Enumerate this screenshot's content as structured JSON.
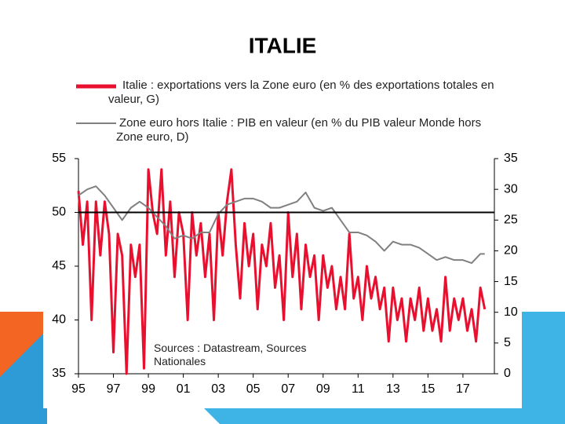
{
  "chart_data": {
    "type": "line",
    "title": "ITALIE",
    "annotation": "Sources : Datastream, Sources Nationales",
    "xlim": [
      1995,
      2018.8
    ],
    "xticks": [
      {
        "value": 1995,
        "label": "95"
      },
      {
        "value": 1997,
        "label": "97"
      },
      {
        "value": 1999,
        "label": "99"
      },
      {
        "value": 2001,
        "label": "01"
      },
      {
        "value": 2003,
        "label": "03"
      },
      {
        "value": 2005,
        "label": "05"
      },
      {
        "value": 2007,
        "label": "07"
      },
      {
        "value": 2009,
        "label": "09"
      },
      {
        "value": 2011,
        "label": "11"
      },
      {
        "value": 2013,
        "label": "13"
      },
      {
        "value": 2015,
        "label": "15"
      },
      {
        "value": 2017,
        "label": "17"
      }
    ],
    "ylim": [
      35,
      55
    ],
    "yticks": [
      35,
      40,
      45,
      50,
      55
    ],
    "y2lim": [
      0,
      35
    ],
    "y2ticks": [
      0,
      5,
      10,
      15,
      20,
      25,
      30,
      35
    ],
    "reference_line": 50,
    "series": [
      {
        "name": "Italie : exportations vers la Zone euro (en % des exportations totales en valeur, G)",
        "color": "#e8102e",
        "axis": "y",
        "x": [
          1995,
          1995.25,
          1995.5,
          1995.75,
          1996,
          1996.25,
          1996.5,
          1996.75,
          1997,
          1997.25,
          1997.5,
          1997.75,
          1998,
          1998.25,
          1998.5,
          1998.75,
          1999,
          1999.25,
          1999.5,
          1999.75,
          2000,
          2000.25,
          2000.5,
          2000.75,
          2001,
          2001.25,
          2001.5,
          2001.75,
          2002,
          2002.25,
          2002.5,
          2002.75,
          2003,
          2003.25,
          2003.5,
          2003.75,
          2004,
          2004.25,
          2004.5,
          2004.75,
          2005,
          2005.25,
          2005.5,
          2005.75,
          2006,
          2006.25,
          2006.5,
          2006.75,
          2007,
          2007.25,
          2007.5,
          2007.75,
          2008,
          2008.25,
          2008.5,
          2008.75,
          2009,
          2009.25,
          2009.5,
          2009.75,
          2010,
          2010.25,
          2010.5,
          2010.75,
          2011,
          2011.25,
          2011.5,
          2011.75,
          2012,
          2012.25,
          2012.5,
          2012.75,
          2013,
          2013.25,
          2013.5,
          2013.75,
          2014,
          2014.25,
          2014.5,
          2014.75,
          2015,
          2015.25,
          2015.5,
          2015.75,
          2016,
          2016.25,
          2016.5,
          2016.75,
          2017,
          2017.25,
          2017.5,
          2017.75,
          2018,
          2018.25
        ],
        "values": [
          52,
          47,
          51,
          40,
          51,
          46,
          51,
          48,
          37,
          48,
          46,
          35,
          47,
          44,
          47,
          35.5,
          54,
          50,
          48,
          54,
          46,
          51,
          44,
          50,
          48,
          40,
          50,
          46,
          49,
          44,
          48,
          40,
          50,
          46,
          51,
          54,
          47,
          42,
          49,
          45,
          48,
          41,
          47,
          45,
          49,
          43,
          46,
          40,
          50,
          44,
          48,
          41,
          47,
          44,
          46,
          40,
          46,
          43,
          45,
          41,
          44,
          41,
          48,
          42,
          44,
          40,
          45,
          42,
          44,
          41,
          43,
          38,
          43,
          40,
          42,
          38,
          42,
          40,
          43,
          39,
          42,
          39,
          41,
          38,
          44,
          39,
          42,
          40,
          42,
          39,
          41,
          38,
          43,
          41
        ]
      },
      {
        "name": "Zone euro hors Italie : PIB en valeur (en % du PIB valeur Monde hors Zone euro, D)",
        "color": "#808080",
        "axis": "y2",
        "x": [
          1995,
          1995.5,
          1996,
          1996.5,
          1997,
          1997.5,
          1998,
          1998.5,
          1999,
          1999.5,
          2000,
          2000.5,
          2001,
          2001.5,
          2002,
          2002.5,
          2003,
          2003.5,
          2004,
          2004.5,
          2005,
          2005.5,
          2006,
          2006.5,
          2007,
          2007.5,
          2008,
          2008.5,
          2009,
          2009.5,
          2010,
          2010.5,
          2011,
          2011.5,
          2012,
          2012.5,
          2013,
          2013.5,
          2014,
          2014.5,
          2015,
          2015.5,
          2016,
          2016.5,
          2017,
          2017.5,
          2018,
          2018.25
        ],
        "values": [
          29,
          30,
          30.5,
          29,
          27,
          25,
          27,
          28,
          27,
          25.5,
          24,
          22,
          22.5,
          22,
          23,
          23,
          26,
          27.5,
          28,
          28.5,
          28.5,
          28,
          27,
          27,
          27.5,
          28,
          29.5,
          27,
          26.5,
          27,
          25,
          23,
          23,
          22.5,
          21.5,
          20,
          21.5,
          21,
          21,
          20.5,
          19.5,
          18.5,
          19,
          18.5,
          18.5,
          18,
          19.5,
          19.5
        ]
      }
    ]
  }
}
